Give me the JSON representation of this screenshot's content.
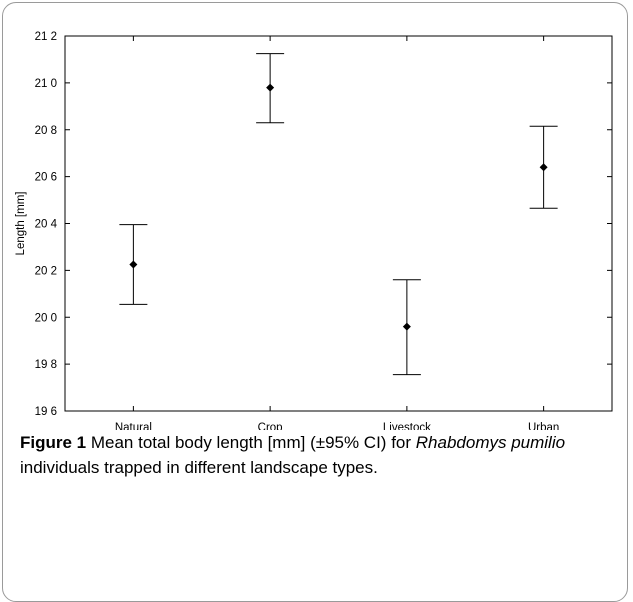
{
  "chart_data": {
    "type": "errorbar",
    "categories": [
      "Natural",
      "Crop",
      "Livestock",
      "Urban"
    ],
    "means": [
      20.225,
      20.98,
      19.96,
      20.64
    ],
    "ci_lower": [
      20.055,
      20.83,
      19.755,
      20.465
    ],
    "ci_upper": [
      20.395,
      21.125,
      20.16,
      20.815
    ],
    "ylabel": "Length [mm]",
    "xlabel": "",
    "ylim": [
      19.6,
      21.2
    ],
    "yticks": [
      19.6,
      19.8,
      20.0,
      20.2,
      20.4,
      20.6,
      20.8,
      21.0,
      21.2
    ],
    "ytick_labels": [
      "19 6",
      "19 8",
      "20 0",
      "20 2",
      "20 4",
      "20 6",
      "20 8",
      "21 0",
      "21 2"
    ],
    "grid": false,
    "marker_color": "#000000"
  },
  "caption": {
    "label": "Figure 1",
    "text_before": " Mean total body length [mm] (±95% CI) for ",
    "species": "Rhabdomys pumilio",
    "text_after": " individuals trapped in different landscape types."
  }
}
